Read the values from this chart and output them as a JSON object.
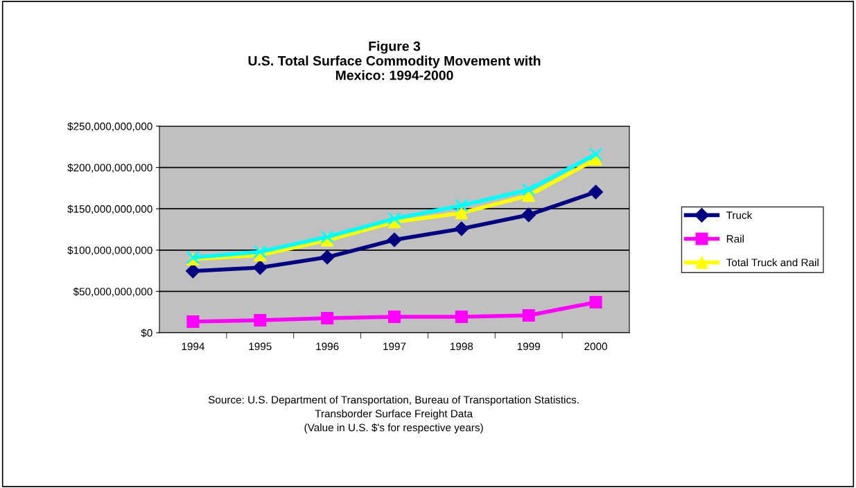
{
  "chart_data": {
    "type": "line",
    "title": "Figure 3\nU.S. Total Surface Commodity Movement with\nMexico: 1994-2000",
    "categories": [
      "1994",
      "1995",
      "1996",
      "1997",
      "1998",
      "1999",
      "2000"
    ],
    "series": [
      {
        "name": "Truck",
        "color": "#000080",
        "marker": "diamond",
        "values": [
          74700000000,
          78900000000,
          91400000000,
          112400000000,
          125800000000,
          142600000000,
          170300000000
        ]
      },
      {
        "name": "Rail",
        "color": "#ff00ff",
        "marker": "square",
        "values": [
          13400000000,
          15100000000,
          17600000000,
          19300000000,
          19300000000,
          21000000000,
          36900000000
        ]
      },
      {
        "name": "Total Truck and Rail",
        "color": "#ffff00",
        "marker": "triangle",
        "values": [
          89000000000,
          94000000000,
          112000000000,
          134000000000,
          145000000000,
          166000000000,
          210000000000
        ]
      },
      {
        "color": "#00ffff",
        "marker": "cross",
        "values": [
          91000000000,
          98000000000,
          116000000000,
          138000000000,
          154000000000,
          173000000000,
          216000000000
        ]
      }
    ],
    "ylim": [
      0,
      250000000000
    ],
    "yticks": [
      {
        "value": 0,
        "label": "$0"
      },
      {
        "value": 50000000000,
        "label": "$50,000,000,000"
      },
      {
        "value": 100000000000,
        "label": "$100,000,000,000"
      },
      {
        "value": 150000000000,
        "label": "$150,000,000,000"
      },
      {
        "value": 200000000000,
        "label": "$200,000,000,000"
      },
      {
        "value": 250000000000,
        "label": "$250,000,000,000"
      }
    ],
    "grid": "y",
    "legend": "right",
    "annotations": [
      "Source: U.S. Department of Transportation, Bureau of Transportation Statistics.",
      "Transborder Surface Freight Data",
      "(Value in U.S. $'s for respective years)"
    ]
  }
}
